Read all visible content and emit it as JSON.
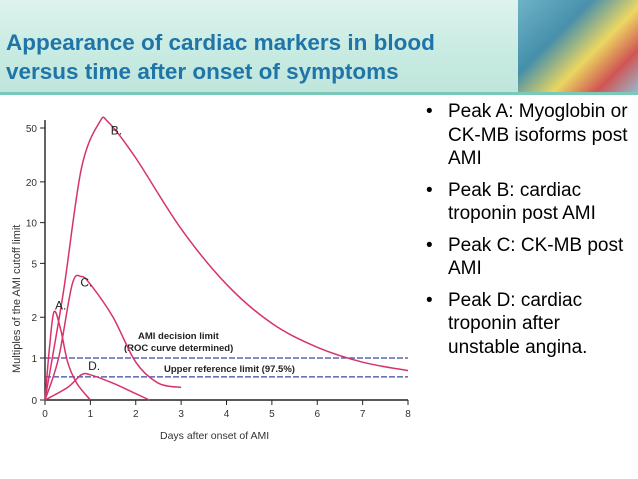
{
  "slide": {
    "title_line1": "Appearance of cardiac markers in blood",
    "title_line2": "versus time after onset of symptoms",
    "bullets": [
      "Peak A: Myoglobin or CK-MB isoforms post AMI",
      "Peak B: cardiac troponin post AMI",
      "Peak C: CK-MB post AMI",
      "Peak D: cardiac troponin after unstable angina."
    ]
  },
  "colors": {
    "title": "#1f74a8",
    "curve": "#d6336c",
    "reference_line": "#3a4a9a",
    "header_band": "#c8ebe2"
  },
  "chart_data": {
    "type": "line",
    "xlabel": "Days after onset of AMI",
    "ylabel": "Multiples of the AMI cutoff limit",
    "x_ticks": [
      0,
      1,
      2,
      3,
      4,
      5,
      6,
      7,
      8
    ],
    "y_ticks": [
      0,
      1,
      2,
      5,
      10,
      20,
      50
    ],
    "y_scale": "log-like",
    "xlim": [
      0,
      8
    ],
    "ylim": [
      0,
      50
    ],
    "series": [
      {
        "name": "A.",
        "x": [
          0,
          0.1,
          0.2,
          0.35,
          0.5,
          0.7,
          1.0
        ],
        "y": [
          0,
          1.2,
          2.2,
          1.6,
          0.9,
          0.4,
          0
        ]
      },
      {
        "name": "B.",
        "x": [
          0,
          0.4,
          0.8,
          1.2,
          1.4,
          2,
          3,
          4,
          5,
          6,
          7,
          8
        ],
        "y": [
          0,
          3,
          25,
          55,
          55,
          30,
          9,
          3.5,
          1.8,
          1.2,
          0.9,
          0.7
        ]
      },
      {
        "name": "C.",
        "x": [
          0,
          0.3,
          0.6,
          0.8,
          1,
          1.5,
          2,
          2.5,
          3
        ],
        "y": [
          0,
          1,
          3.5,
          4,
          3.5,
          2,
          0.9,
          0.4,
          0.3
        ]
      },
      {
        "name": "D.",
        "x": [
          0,
          0.5,
          0.8,
          1,
          1.5,
          2,
          2.3
        ],
        "y": [
          0,
          0.3,
          0.6,
          0.6,
          0.4,
          0.15,
          0
        ]
      }
    ],
    "annotations": [
      {
        "text": "AMI decision limit",
        "value": 1
      },
      {
        "text": "(ROC curve determined)"
      },
      {
        "text": "Upper reference limit (97.5%)",
        "value": 0.55
      }
    ],
    "grid": false
  }
}
